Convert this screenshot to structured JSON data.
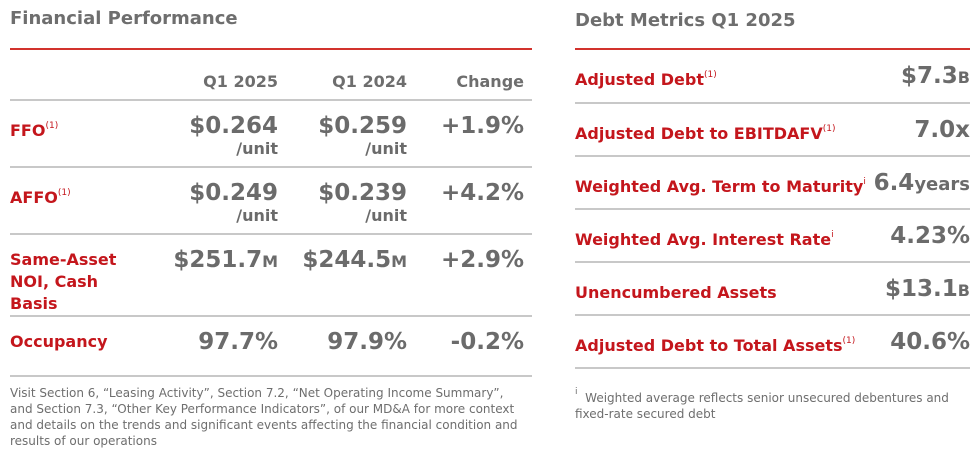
{
  "financial": {
    "title": "Financial Performance",
    "headers": [
      "Q1 2025",
      "Q1 2024",
      "Change"
    ],
    "rows": [
      {
        "label": "FFO",
        "note": "(1)",
        "q1_2025": "$0.264",
        "q1_2024": "$0.259",
        "unit": "/unit",
        "change": "+1.9%"
      },
      {
        "label": "AFFO",
        "note": "(1)",
        "q1_2025": "$0.249",
        "q1_2024": "$0.239",
        "unit": "/unit",
        "change": "+4.2%"
      },
      {
        "label": "Same-Asset NOI, Cash Basis",
        "note": "",
        "q1_2025": "$251.7",
        "q1_2025_suffix": "M",
        "q1_2024": "$244.5",
        "q1_2024_suffix": "M",
        "change": "+2.9%"
      },
      {
        "label": "Occupancy",
        "note": "",
        "q1_2025": "97.7%",
        "q1_2024": "97.9%",
        "change": "-0.2%"
      }
    ],
    "footnote": "Visit Section 6, “Leasing Activity”, Section 7.2, “Net Operating Income Summary”, and Section 7.3, “Other Key Performance Indicators”, of our MD&A for more context and details on the trends and significant events affecting the financial condition and results of our operations"
  },
  "debt": {
    "title": "Debt Metrics Q1 2025",
    "rows": [
      {
        "label": "Adjusted Debt",
        "note": "(1)",
        "value": "$7.3",
        "suffix": "B"
      },
      {
        "label": "Adjusted Debt to EBITDAFV",
        "note": "(1)",
        "value": "7.0x",
        "suffix": ""
      },
      {
        "label": "Weighted Avg. Term to Maturity",
        "note": "i",
        "value": "6.4",
        "suffix": "years"
      },
      {
        "label": "Weighted Avg. Interest Rate",
        "note": "i",
        "value": "4.23%",
        "suffix": ""
      },
      {
        "label": "Unencumbered Assets",
        "note": "",
        "value": "$13.1",
        "suffix": "B"
      },
      {
        "label": "Adjusted Debt to Total Assets",
        "note": "(1)",
        "value": "40.6%",
        "suffix": ""
      }
    ],
    "footnote_mark": "i",
    "footnote": "Weighted average reflects senior unsecured debentures and fixed-rate secured debt"
  },
  "colors": {
    "accent": "#c4161c",
    "text": "#6b6b6b"
  }
}
